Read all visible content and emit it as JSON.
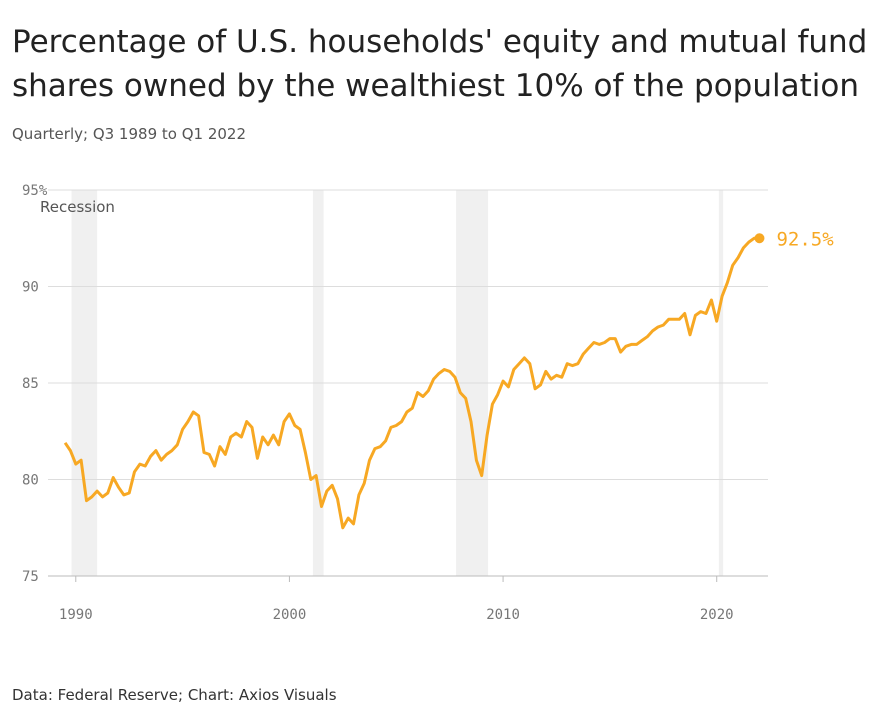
{
  "chart_data": {
    "type": "line",
    "title": [
      "Percentage of U.S. households' equity and mutual fund",
      "shares owned by the wealthiest 10% of the population"
    ],
    "subtitle": "Quarterly; Q3 1989 to Q1 2022",
    "source": "Data: Federal Reserve; Chart: Axios Visuals",
    "recession_label": "Recession",
    "recessions": [
      [
        1989.8,
        1991.0
      ],
      [
        2001.1,
        2001.6
      ],
      [
        2007.8,
        2009.3
      ],
      [
        2020.1,
        2020.3
      ]
    ],
    "recession_color": "#f0f0f0",
    "xlim": [
      1988.7,
      2022.4
    ],
    "xticks": [
      1990,
      2000,
      2010,
      2020
    ],
    "ylim": [
      75,
      95
    ],
    "yticks": [
      75,
      80,
      85,
      90,
      {
        "value": 95,
        "label": "95%"
      }
    ],
    "grid": true,
    "x": [
      1989.5,
      1989.75,
      1990,
      1990.25,
      1990.5,
      1990.75,
      1991,
      1991.25,
      1991.5,
      1991.75,
      1992,
      1992.25,
      1992.5,
      1992.75,
      1993,
      1993.25,
      1993.5,
      1993.75,
      1994,
      1994.25,
      1994.5,
      1994.75,
      1995,
      1995.25,
      1995.5,
      1995.75,
      1996,
      1996.25,
      1996.5,
      1996.75,
      1997,
      1997.25,
      1997.5,
      1997.75,
      1998,
      1998.25,
      1998.5,
      1998.75,
      1999,
      1999.25,
      1999.5,
      1999.75,
      2000,
      2000.25,
      2000.5,
      2000.75,
      2001,
      2001.25,
      2001.5,
      2001.75,
      2002,
      2002.25,
      2002.5,
      2002.75,
      2003,
      2003.25,
      2003.5,
      2003.75,
      2004,
      2004.25,
      2004.5,
      2004.75,
      2005,
      2005.25,
      2005.5,
      2005.75,
      2006,
      2006.25,
      2006.5,
      2006.75,
      2007,
      2007.25,
      2007.5,
      2007.75,
      2008,
      2008.25,
      2008.5,
      2008.75,
      2009,
      2009.25,
      2009.5,
      2009.75,
      2010,
      2010.25,
      2010.5,
      2010.75,
      2011,
      2011.25,
      2011.5,
      2011.75,
      2012,
      2012.25,
      2012.5,
      2012.75,
      2013,
      2013.25,
      2013.5,
      2013.75,
      2014,
      2014.25,
      2014.5,
      2014.75,
      2015,
      2015.25,
      2015.5,
      2015.75,
      2016,
      2016.25,
      2016.5,
      2016.75,
      2017,
      2017.25,
      2017.5,
      2017.75,
      2018,
      2018.25,
      2018.5,
      2018.75,
      2019,
      2019.25,
      2019.5,
      2019.75,
      2020,
      2020.25,
      2020.5,
      2020.75,
      2021,
      2021.25,
      2021.5,
      2021.75,
      2022
    ],
    "series": [
      {
        "color": "#f7a823",
        "values": [
          81.9,
          81.5,
          80.8,
          81.0,
          78.9,
          79.1,
          79.4,
          79.1,
          79.3,
          80.1,
          79.6,
          79.2,
          79.3,
          80.4,
          80.8,
          80.7,
          81.2,
          81.5,
          81.0,
          81.3,
          81.5,
          81.8,
          82.6,
          83.0,
          83.5,
          83.3,
          81.4,
          81.3,
          80.7,
          81.7,
          81.3,
          82.2,
          82.4,
          82.2,
          83.0,
          82.7,
          81.1,
          82.2,
          81.8,
          82.3,
          81.8,
          83.0,
          83.4,
          82.8,
          82.6,
          81.4,
          80.0,
          80.2,
          78.6,
          79.4,
          79.7,
          79.0,
          77.5,
          78.0,
          77.7,
          79.2,
          79.8,
          81.0,
          81.6,
          81.7,
          82.0,
          82.7,
          82.8,
          83.0,
          83.5,
          83.7,
          84.5,
          84.3,
          84.6,
          85.2,
          85.5,
          85.7,
          85.6,
          85.3,
          84.5,
          84.2,
          83.0,
          81.0,
          80.2,
          82.3,
          83.9,
          84.4,
          85.1,
          84.8,
          85.7,
          86.0,
          86.3,
          86.0,
          84.7,
          84.9,
          85.6,
          85.2,
          85.4,
          85.3,
          86.0,
          85.9,
          86.0,
          86.5,
          86.8,
          87.1,
          87.0,
          87.1,
          87.3,
          87.3,
          86.6,
          86.9,
          87.0,
          87.0,
          87.2,
          87.4,
          87.7,
          87.9,
          88.0,
          88.3,
          88.3,
          88.3,
          88.6,
          87.5,
          88.5,
          88.7,
          88.6,
          89.3,
          88.2,
          89.5,
          90.2,
          91.1,
          91.5,
          92.0,
          92.3,
          92.5,
          92.5
        ],
        "value_labels": [
          null,
          null,
          null,
          null,
          null,
          null,
          null,
          null,
          null,
          null,
          null,
          null,
          null,
          null,
          null,
          null,
          null,
          null,
          null,
          null,
          null,
          null,
          null,
          null,
          null,
          null,
          null,
          null,
          null,
          null,
          null,
          null,
          null,
          null,
          null,
          null,
          null,
          null,
          null,
          null,
          null,
          null,
          null,
          null,
          null,
          null,
          null,
          null,
          null,
          null,
          null,
          null,
          null,
          null,
          null,
          null,
          null,
          null,
          null,
          null,
          null,
          null,
          null,
          null,
          null,
          null,
          null,
          null,
          null,
          null,
          null,
          null,
          null,
          null,
          null,
          null,
          null,
          null,
          null,
          null,
          null,
          null,
          null,
          null,
          null,
          null,
          null,
          null,
          null,
          null,
          null,
          null,
          null,
          null,
          null,
          null,
          null,
          null,
          null,
          null,
          null,
          null,
          null,
          null,
          null,
          null,
          null,
          null,
          null,
          null,
          null,
          null,
          null,
          null,
          null,
          null,
          null,
          null,
          null,
          null,
          null,
          null,
          null,
          null,
          null,
          null,
          null,
          null,
          null,
          null,
          "92.5%"
        ]
      }
    ]
  }
}
